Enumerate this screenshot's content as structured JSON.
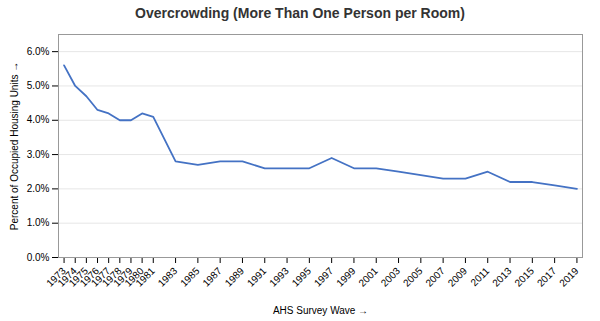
{
  "chart_data": {
    "type": "line",
    "title": "Overcrowding (More Than One Person per Room)",
    "xlabel": "AHS Survey Wave",
    "ylabel": "Percent of Occupied Housing Units",
    "x": [
      1973,
      1974,
      1975,
      1976,
      1977,
      1978,
      1979,
      1980,
      1981,
      1983,
      1985,
      1987,
      1989,
      1991,
      1993,
      1995,
      1997,
      1999,
      2001,
      2003,
      2005,
      2007,
      2009,
      2011,
      2013,
      2015,
      2017,
      2019
    ],
    "values": [
      0.056,
      0.05,
      0.047,
      0.043,
      0.042,
      0.04,
      0.04,
      0.042,
      0.041,
      0.028,
      0.027,
      0.028,
      0.028,
      0.026,
      0.026,
      0.026,
      0.029,
      0.026,
      0.026,
      0.025,
      0.024,
      0.023,
      0.023,
      0.025,
      0.022,
      0.022,
      0.021,
      0.02
    ],
    "color": "#4472C4",
    "xlim": [
      1972.5,
      2019.5
    ],
    "xticks": [
      1973,
      1974,
      1975,
      1976,
      1977,
      1978,
      1979,
      1980,
      1981,
      1983,
      1985,
      1987,
      1989,
      1991,
      1993,
      1995,
      1997,
      1999,
      2001,
      2003,
      2005,
      2007,
      2009,
      2011,
      2013,
      2015,
      2017,
      2019
    ],
    "ylim": [
      0.0,
      0.065
    ],
    "yticks": [
      {
        "value": 0.0,
        "label": "0.0%"
      },
      {
        "value": 0.01,
        "label": "1.0%"
      },
      {
        "value": 0.02,
        "label": "2.0%"
      },
      {
        "value": 0.03,
        "label": "3.0%"
      },
      {
        "value": 0.04,
        "label": "4.0%"
      },
      {
        "value": 0.05,
        "label": "5.0%"
      },
      {
        "value": 0.06,
        "label": "6.0%"
      }
    ],
    "grid": true
  }
}
